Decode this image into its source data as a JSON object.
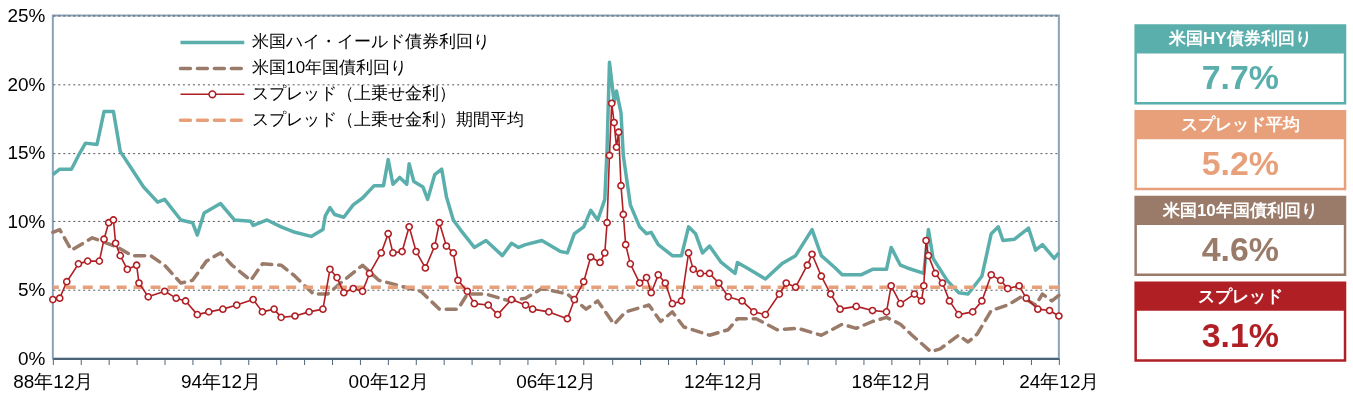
{
  "chart_data": {
    "type": "line",
    "xlim": [
      "1988-12",
      "2024-12"
    ],
    "xticks": [
      {
        "value": "1988-12",
        "label": "88年12月"
      },
      {
        "value": "1989-12",
        "label": null
      },
      {
        "value": "1990-12",
        "label": null
      },
      {
        "value": "1991-12",
        "label": null
      },
      {
        "value": "1992-12",
        "label": null
      },
      {
        "value": "1993-12",
        "label": null
      },
      {
        "value": "1994-12",
        "label": "94年12月"
      },
      {
        "value": "1995-12",
        "label": null
      },
      {
        "value": "1996-12",
        "label": null
      },
      {
        "value": "1997-12",
        "label": null
      },
      {
        "value": "1998-12",
        "label": null
      },
      {
        "value": "1999-12",
        "label": null
      },
      {
        "value": "2000-12",
        "label": "00年12月"
      },
      {
        "value": "2001-12",
        "label": null
      },
      {
        "value": "2002-12",
        "label": null
      },
      {
        "value": "2003-12",
        "label": null
      },
      {
        "value": "2004-12",
        "label": null
      },
      {
        "value": "2005-12",
        "label": null
      },
      {
        "value": "2006-12",
        "label": "06年12月"
      },
      {
        "value": "2007-12",
        "label": null
      },
      {
        "value": "2008-12",
        "label": null
      },
      {
        "value": "2009-12",
        "label": null
      },
      {
        "value": "2010-12",
        "label": null
      },
      {
        "value": "2011-12",
        "label": null
      },
      {
        "value": "2012-12",
        "label": "12年12月"
      },
      {
        "value": "2013-12",
        "label": null
      },
      {
        "value": "2014-12",
        "label": null
      },
      {
        "value": "2015-12",
        "label": null
      },
      {
        "value": "2016-12",
        "label": null
      },
      {
        "value": "2017-12",
        "label": null
      },
      {
        "value": "2018-12",
        "label": "18年12月"
      },
      {
        "value": "2019-12",
        "label": null
      },
      {
        "value": "2020-12",
        "label": null
      },
      {
        "value": "2021-12",
        "label": null
      },
      {
        "value": "2022-12",
        "label": null
      },
      {
        "value": "2023-12",
        "label": null
      },
      {
        "value": "2024-12",
        "label": "24年12月"
      }
    ],
    "ylim": [
      0,
      25
    ],
    "yticks": [
      {
        "value": 0,
        "label": "0%"
      },
      {
        "value": 5,
        "label": "5%"
      },
      {
        "value": 10,
        "label": "10%"
      },
      {
        "value": 15,
        "label": "15%"
      },
      {
        "value": 20,
        "label": "20%"
      },
      {
        "value": 25,
        "label": "25%"
      }
    ],
    "grid": "y",
    "legend": "top left",
    "series": [
      {
        "name": "米国ハイ・イールド債券利回り",
        "color": "#5aafac",
        "line_style": "solid",
        "x": [
          "1988-12",
          "1989-03",
          "1989-08",
          "1989-11",
          "1990-02",
          "1990-07",
          "1990-10",
          "1991-02",
          "1991-05",
          "1991-10",
          "1992-03",
          "1992-09",
          "1992-12",
          "1993-07",
          "1993-12",
          "1994-02",
          "1994-05",
          "1994-12",
          "1995-06",
          "1996-01",
          "1996-02",
          "1996-08",
          "1997-02",
          "1997-08",
          "1998-03",
          "1998-08",
          "1998-09",
          "1998-11",
          "1999-01",
          "1999-05",
          "1999-09",
          "2000-01",
          "2000-06",
          "2000-10",
          "2000-12",
          "2001-02",
          "2001-05",
          "2001-08",
          "2001-09",
          "2001-11",
          "2002-03",
          "2002-05",
          "2002-08",
          "2002-11",
          "2003-01",
          "2003-04",
          "2003-07",
          "2004-01",
          "2004-06",
          "2005-01",
          "2005-05",
          "2005-08",
          "2005-11",
          "2006-06",
          "2007-02",
          "2007-05",
          "2007-08",
          "2007-12",
          "2008-03",
          "2008-06",
          "2008-09",
          "2008-10",
          "2008-11",
          "2009-01",
          "2009-02",
          "2009-04",
          "2009-05",
          "2009-08",
          "2009-12",
          "2010-03",
          "2010-05",
          "2010-08",
          "2011-02",
          "2011-06",
          "2011-09",
          "2011-12",
          "2012-03",
          "2012-06",
          "2012-11",
          "2013-05",
          "2013-06",
          "2013-11",
          "2014-06",
          "2015-01",
          "2015-07",
          "2016-02",
          "2016-06",
          "2016-12",
          "2017-03",
          "2017-11",
          "2018-04",
          "2018-10",
          "2018-12",
          "2019-04",
          "2019-07",
          "2020-02",
          "2020-04",
          "2020-06",
          "2020-12",
          "2021-05",
          "2021-09",
          "2022-03",
          "2022-07",
          "2022-10",
          "2022-12",
          "2023-05",
          "2023-11",
          "2024-02",
          "2024-05",
          "2024-10",
          "2024-12"
        ],
        "values": [
          13.4,
          13.8,
          13.8,
          14.8,
          15.7,
          15.6,
          18.0,
          18.0,
          15.1,
          13.8,
          12.5,
          11.4,
          11.6,
          10.1,
          9.9,
          9.0,
          10.6,
          11.3,
          10.1,
          10.0,
          9.7,
          10.1,
          9.6,
          9.2,
          8.9,
          9.4,
          10.4,
          11.0,
          10.5,
          10.3,
          11.2,
          11.7,
          12.6,
          12.6,
          14.5,
          12.7,
          13.2,
          12.7,
          14.2,
          12.9,
          12.5,
          11.6,
          13.4,
          13.8,
          11.8,
          10.1,
          9.4,
          8.1,
          8.6,
          7.5,
          8.4,
          8.1,
          8.3,
          8.6,
          7.8,
          7.7,
          9.1,
          9.6,
          10.8,
          10.1,
          11.6,
          15.3,
          21.6,
          18.7,
          19.5,
          17.9,
          14.8,
          11.2,
          9.6,
          9.1,
          9.2,
          8.3,
          7.5,
          7.5,
          9.6,
          9.1,
          7.7,
          8.2,
          7.0,
          6.2,
          7.0,
          6.5,
          5.8,
          6.9,
          7.5,
          9.4,
          7.5,
          6.6,
          6.1,
          6.1,
          6.5,
          6.5,
          8.1,
          6.8,
          6.6,
          6.2,
          9.4,
          7.3,
          5.7,
          4.8,
          4.7,
          6.0,
          9.1,
          9.6,
          8.6,
          8.7,
          9.5,
          7.9,
          8.3,
          7.3,
          7.7
        ]
      },
      {
        "name": "米国10年国債利回り",
        "color": "#9a7b6a",
        "line_style": "dashed",
        "x": [
          "1988-12",
          "1989-03",
          "1989-08",
          "1990-05",
          "1991-04",
          "1991-10",
          "1992-06",
          "1992-12",
          "1993-07",
          "1993-12",
          "1994-06",
          "1994-12",
          "1995-05",
          "1996-01",
          "1996-06",
          "1997-02",
          "1997-08",
          "1998-04",
          "1998-10",
          "1999-05",
          "2000-01",
          "2000-08",
          "2001-05",
          "2002-02",
          "2002-10",
          "2003-06",
          "2003-10",
          "2004-06",
          "2005-04",
          "2005-11",
          "2006-06",
          "2007-05",
          "2008-01",
          "2008-06",
          "2009-01",
          "2009-06",
          "2010-04",
          "2010-09",
          "2011-02",
          "2011-07",
          "2012-06",
          "2013-02",
          "2013-06",
          "2014-02",
          "2014-11",
          "2015-08",
          "2016-06",
          "2017-03",
          "2017-09",
          "2018-04",
          "2018-10",
          "2019-04",
          "2019-09",
          "2020-05",
          "2020-09",
          "2021-05",
          "2021-09",
          "2022-01",
          "2022-07",
          "2023-02",
          "2023-08",
          "2024-02",
          "2024-05",
          "2024-09",
          "2024-12"
        ],
        "values": [
          9.2,
          9.4,
          7.9,
          8.8,
          8.1,
          7.5,
          7.5,
          6.8,
          5.5,
          5.7,
          7.1,
          7.7,
          6.8,
          5.7,
          6.9,
          6.8,
          6.0,
          4.7,
          4.7,
          5.7,
          6.8,
          5.7,
          5.3,
          4.9,
          3.6,
          3.6,
          4.7,
          4.7,
          4.2,
          4.4,
          5.1,
          4.7,
          3.6,
          4.2,
          2.5,
          3.4,
          3.9,
          2.7,
          3.4,
          2.3,
          1.7,
          2.1,
          2.9,
          2.9,
          2.1,
          2.2,
          1.7,
          2.5,
          2.2,
          2.7,
          3.0,
          2.5,
          1.7,
          0.5,
          0.7,
          1.7,
          1.2,
          1.8,
          3.5,
          3.9,
          4.5,
          3.9,
          4.7,
          4.2,
          4.6
        ]
      },
      {
        "name": "スプレッド（上乗せ金利）",
        "color": "#b01f24",
        "line_style": "solid",
        "marker": "circle",
        "x": [
          "1988-12",
          "1989-03",
          "1989-06",
          "1989-11",
          "1990-03",
          "1990-08",
          "1990-10",
          "1990-12",
          "1991-02",
          "1991-03",
          "1991-05",
          "1991-08",
          "1991-12",
          "1992-01",
          "1992-05",
          "1992-12",
          "1993-05",
          "1993-09",
          "1994-02",
          "1994-07",
          "1995-01",
          "1995-07",
          "1996-02",
          "1996-06",
          "1996-11",
          "1997-02",
          "1997-08",
          "1998-02",
          "1998-08",
          "1998-11",
          "1999-02",
          "1999-05",
          "1999-09",
          "2000-01",
          "2000-04",
          "2000-09",
          "2000-12",
          "2001-02",
          "2001-06",
          "2001-09",
          "2001-12",
          "2002-04",
          "2002-08",
          "2002-10",
          "2003-01",
          "2003-04",
          "2003-06",
          "2003-10",
          "2004-01",
          "2004-07",
          "2004-11",
          "2005-05",
          "2005-11",
          "2006-02",
          "2006-09",
          "2007-05",
          "2007-08",
          "2007-12",
          "2008-03",
          "2008-07",
          "2008-09",
          "2008-10",
          "2008-11",
          "2008-12",
          "2009-01",
          "2009-02",
          "2009-03",
          "2009-04",
          "2009-05",
          "2009-06",
          "2009-08",
          "2009-12",
          "2010-03",
          "2010-05",
          "2010-08",
          "2010-11",
          "2011-02",
          "2011-06",
          "2011-09",
          "2011-11",
          "2012-02",
          "2012-06",
          "2012-10",
          "2013-02",
          "2013-08",
          "2014-01",
          "2014-06",
          "2014-12",
          "2015-03",
          "2015-07",
          "2015-12",
          "2016-02",
          "2016-06",
          "2016-10",
          "2017-02",
          "2017-09",
          "2018-04",
          "2018-10",
          "2018-12",
          "2019-04",
          "2019-10",
          "2020-01",
          "2020-02",
          "2020-03",
          "2020-04",
          "2020-07",
          "2020-10",
          "2021-01",
          "2021-05",
          "2021-11",
          "2022-03",
          "2022-07",
          "2022-11",
          "2023-02",
          "2023-07",
          "2023-10",
          "2024-03",
          "2024-08",
          "2024-12"
        ],
        "values": [
          4.3,
          4.4,
          5.6,
          6.9,
          7.1,
          7.1,
          8.7,
          9.9,
          10.1,
          8.4,
          7.5,
          6.5,
          6.8,
          5.5,
          4.5,
          4.9,
          4.4,
          4.2,
          3.2,
          3.4,
          3.6,
          3.9,
          4.3,
          3.4,
          3.6,
          3.0,
          3.1,
          3.4,
          3.6,
          6.5,
          5.9,
          4.8,
          5.1,
          4.9,
          6.2,
          7.7,
          9.1,
          7.7,
          7.8,
          9.6,
          7.8,
          6.6,
          8.2,
          9.9,
          8.2,
          7.7,
          5.7,
          4.9,
          4.0,
          3.9,
          3.2,
          4.3,
          3.9,
          3.6,
          3.4,
          2.9,
          4.3,
          5.6,
          7.4,
          7.0,
          7.7,
          9.9,
          14.8,
          18.6,
          17.2,
          15.4,
          16.5,
          12.6,
          10.5,
          8.3,
          6.9,
          5.5,
          5.9,
          4.8,
          6.1,
          5.5,
          4.0,
          4.2,
          7.7,
          6.5,
          6.2,
          6.2,
          5.5,
          4.5,
          4.2,
          3.4,
          3.2,
          4.7,
          5.5,
          5.2,
          6.8,
          7.6,
          6.0,
          4.7,
          3.6,
          3.8,
          3.5,
          3.4,
          5.3,
          4.0,
          4.7,
          4.2,
          5.3,
          8.6,
          7.5,
          6.2,
          5.5,
          4.2,
          3.2,
          3.4,
          4.2,
          6.1,
          5.7,
          5.1,
          5.3,
          4.4,
          3.6,
          3.5,
          3.1
        ]
      }
    ],
    "ref_lines": [
      {
        "axis": "y",
        "value": 5.2,
        "label": "スプレッド（上乗せ金利）期間平均",
        "color": "#e8a07a",
        "line_style": "dashed"
      }
    ],
    "annotations": [
      "米国HY債券利回り",
      "7.7%",
      "スプレッド平均",
      "5.2%",
      "米国10年国債利回り",
      "4.6%",
      "スプレッド",
      "3.1%"
    ]
  }
}
